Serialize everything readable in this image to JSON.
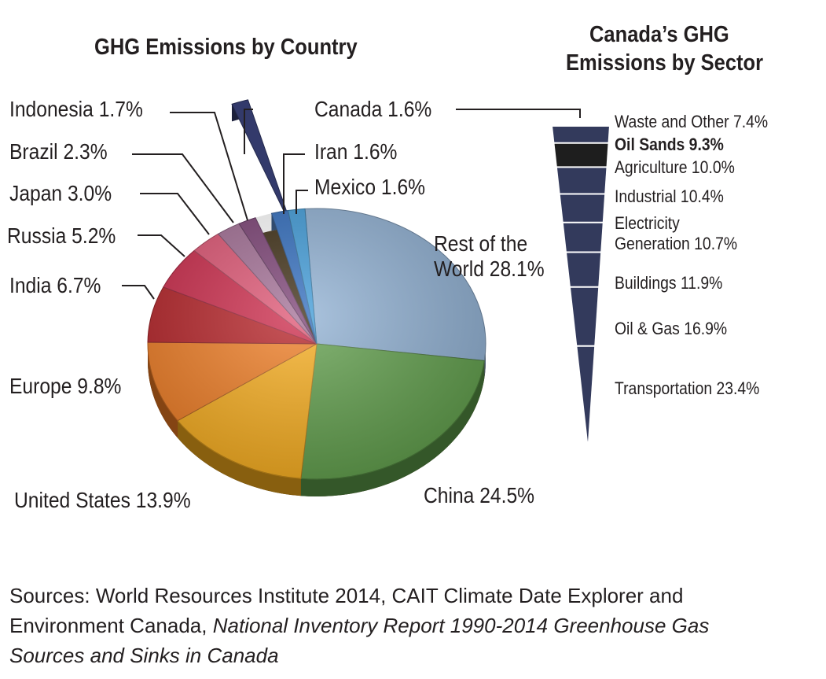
{
  "chart_data": [
    {
      "type": "pie",
      "title": "GHG Emissions by Country",
      "unit": "%",
      "slices": [
        {
          "label": "Rest of the World",
          "value": 28.1,
          "text": "Rest of the World 28.1%",
          "color": "#8fb0d3"
        },
        {
          "label": "China",
          "value": 24.5,
          "text": "China 24.5%",
          "color": "#5f9e4a"
        },
        {
          "label": "United States",
          "value": 13.9,
          "text": "United States 13.9%",
          "color": "#f8ad1c"
        },
        {
          "label": "Europe",
          "value": 9.8,
          "text": "Europe 9.8%",
          "color": "#f07c22"
        },
        {
          "label": "India",
          "value": 6.7,
          "text": "India 6.7%",
          "color": "#b51f24"
        },
        {
          "label": "Russia",
          "value": 5.2,
          "text": "Russia 5.2%",
          "color": "#cc2748"
        },
        {
          "label": "Japan",
          "value": 3.0,
          "text": "Japan 3.0%",
          "color": "#df5372"
        },
        {
          "label": "Brazil",
          "value": 2.3,
          "text": "Brazil 2.3%",
          "color": "#a26d94"
        },
        {
          "label": "Indonesia",
          "value": 1.7,
          "text": "Indonesia 1.7%",
          "color": "#7a3f73"
        },
        {
          "label": "Canada",
          "value": 1.6,
          "text": "Canada 1.6%",
          "color": "#333a6b",
          "exploded": true
        },
        {
          "label": "Iran",
          "value": 1.6,
          "text": "Iran 1.6%",
          "color": "#2e6bbd"
        },
        {
          "label": "Mexico",
          "value": 1.6,
          "text": "Mexico 1.6%",
          "color": "#3d9ad8"
        }
      ]
    },
    {
      "type": "bar",
      "subtype": "funnel",
      "title": "Canada’s GHG Emissions by Sector",
      "title_lines": [
        "Canada’s GHG",
        "Emissions by Sector"
      ],
      "unit": "%",
      "bands": [
        {
          "label": "Waste and Other",
          "value": 7.4,
          "text": "Waste and Other 7.4%",
          "color": "#333a5c"
        },
        {
          "label": "Oil Sands",
          "value": 9.3,
          "text": "Oil Sands 9.3%",
          "color": "#1e1e1e",
          "highlight": true
        },
        {
          "label": "Agriculture",
          "value": 10.0,
          "text": "Agriculture 10.0%",
          "color": "#333a5c"
        },
        {
          "label": "Industrial",
          "value": 10.4,
          "text": "Industrial 10.4%",
          "color": "#333a5c"
        },
        {
          "label": "Electricity Generation",
          "value": 10.7,
          "text_lines": [
            "Electricity",
            "Generation 10.7%"
          ],
          "color": "#333a5c"
        },
        {
          "label": "Buildings",
          "value": 11.9,
          "text": "Buildings 11.9%",
          "color": "#333a5c"
        },
        {
          "label": "Oil & Gas",
          "value": 16.9,
          "text": "Oil & Gas 16.9%",
          "color": "#333a5c"
        },
        {
          "label": "Transportation",
          "value": 23.4,
          "text": "Transportation 23.4%",
          "color": "#333a5c"
        }
      ]
    }
  ],
  "sources": {
    "line1": "Sources: World Resources Institute 2014, CAIT Climate Date Explorer and",
    "line2_plain": "Environment Canada, ",
    "line2_italic": "National Inventory Report 1990-2014 Greenhouse Gas",
    "line3_italic": "Sources and Sinks in Canada"
  }
}
